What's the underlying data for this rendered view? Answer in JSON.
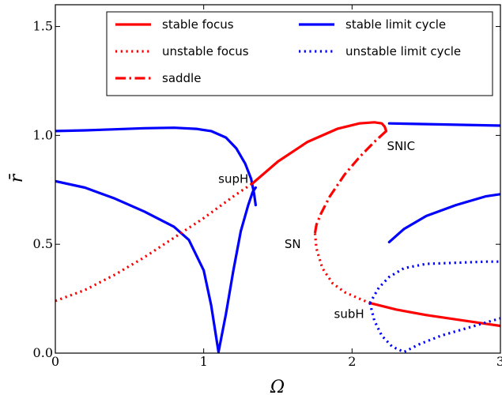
{
  "chart_data": {
    "type": "line",
    "title": "",
    "xlabel": "Ω",
    "ylabel": "r̄",
    "xlim": [
      0,
      3
    ],
    "ylim": [
      0,
      1.6
    ],
    "xticks": [
      "0",
      "1",
      "2",
      "3"
    ],
    "yticks": [
      "0.0",
      "0.5",
      "1.0",
      "1.5"
    ],
    "legend_placement": "top-right",
    "legend": [
      {
        "label": "stable focus",
        "color": "#ff0000",
        "style": "solid"
      },
      {
        "label": "unstable focus",
        "color": "#ff0000",
        "style": "dotted"
      },
      {
        "label": "saddle",
        "color": "#ff0000",
        "style": "dashdot"
      },
      {
        "label": "stable limit cycle",
        "color": "#0000ff",
        "style": "solid"
      },
      {
        "label": "unstable limit cycle",
        "color": "#0000ff",
        "style": "dotted"
      }
    ],
    "series": [
      {
        "color": "#0000ff",
        "style": "solid",
        "x": [
          0,
          0.2,
          0.4,
          0.6,
          0.8,
          0.95,
          1.05,
          1.15,
          1.22,
          1.28,
          1.32,
          1.34,
          1.35
        ],
        "y": [
          1.02,
          1.023,
          1.028,
          1.033,
          1.035,
          1.03,
          1.02,
          0.99,
          0.94,
          0.87,
          0.8,
          0.73,
          0.68
        ]
      },
      {
        "color": "#0000ff",
        "style": "solid",
        "x": [
          0,
          0.2,
          0.4,
          0.6,
          0.8,
          0.9,
          1.0,
          1.05,
          1.1,
          1.15,
          1.2,
          1.25,
          1.3,
          1.33,
          1.35
        ],
        "y": [
          0.79,
          0.76,
          0.71,
          0.65,
          0.58,
          0.52,
          0.38,
          0.22,
          0.005,
          0.18,
          0.38,
          0.56,
          0.68,
          0.74,
          0.76
        ]
      },
      {
        "color": "#ff0000",
        "style": "dotted",
        "x": [
          0,
          0.2,
          0.4,
          0.6,
          0.8,
          1.0,
          1.2,
          1.33
        ],
        "y": [
          0.24,
          0.29,
          0.36,
          0.44,
          0.53,
          0.62,
          0.72,
          0.78
        ]
      },
      {
        "color": "#ff0000",
        "style": "solid",
        "x": [
          1.33,
          1.5,
          1.7,
          1.9,
          2.05,
          2.15,
          2.2,
          2.22,
          2.23
        ],
        "y": [
          0.78,
          0.88,
          0.97,
          1.03,
          1.055,
          1.06,
          1.055,
          1.04,
          1.02
        ]
      },
      {
        "color": "#ff0000",
        "style": "dashdot",
        "x": [
          2.23,
          2.15,
          2.05,
          1.95,
          1.85,
          1.79,
          1.76,
          1.75
        ],
        "y": [
          1.02,
          0.97,
          0.9,
          0.82,
          0.72,
          0.64,
          0.59,
          0.55
        ]
      },
      {
        "color": "#ff0000",
        "style": "dotted",
        "x": [
          1.75,
          1.76,
          1.8,
          1.87,
          1.95,
          2.05,
          2.12
        ],
        "y": [
          0.55,
          0.48,
          0.39,
          0.32,
          0.28,
          0.25,
          0.23
        ]
      },
      {
        "color": "#ff0000",
        "style": "solid",
        "x": [
          2.12,
          2.3,
          2.5,
          2.7,
          2.9,
          3.0
        ],
        "y": [
          0.23,
          0.2,
          0.175,
          0.155,
          0.135,
          0.125
        ]
      },
      {
        "color": "#0000ff",
        "style": "solid",
        "x": [
          2.25,
          3.0
        ],
        "y": [
          1.055,
          1.045
        ]
      },
      {
        "color": "#0000ff",
        "style": "solid",
        "x": [
          2.25,
          2.35,
          2.5,
          2.7,
          2.9,
          3.0
        ],
        "y": [
          0.51,
          0.57,
          0.63,
          0.68,
          0.72,
          0.73
        ]
      },
      {
        "color": "#0000ff",
        "style": "dotted",
        "x": [
          2.12,
          2.18,
          2.25,
          2.35,
          2.5,
          2.7,
          2.9,
          3.0
        ],
        "y": [
          0.23,
          0.3,
          0.35,
          0.39,
          0.41,
          0.415,
          0.42,
          0.42
        ]
      },
      {
        "color": "#0000ff",
        "style": "dotted",
        "x": [
          2.12,
          2.15,
          2.2,
          2.27,
          2.35,
          2.45,
          2.6,
          2.8,
          3.0
        ],
        "y": [
          0.23,
          0.15,
          0.08,
          0.03,
          0.005,
          0.04,
          0.08,
          0.12,
          0.16
        ]
      }
    ],
    "annotations": [
      {
        "text": "supH",
        "x": 1.2,
        "y": 0.8
      },
      {
        "text": "SNIC",
        "x": 2.33,
        "y": 0.95
      },
      {
        "text": "SN",
        "x": 1.6,
        "y": 0.5
      },
      {
        "text": "subH",
        "x": 1.98,
        "y": 0.18
      }
    ]
  }
}
